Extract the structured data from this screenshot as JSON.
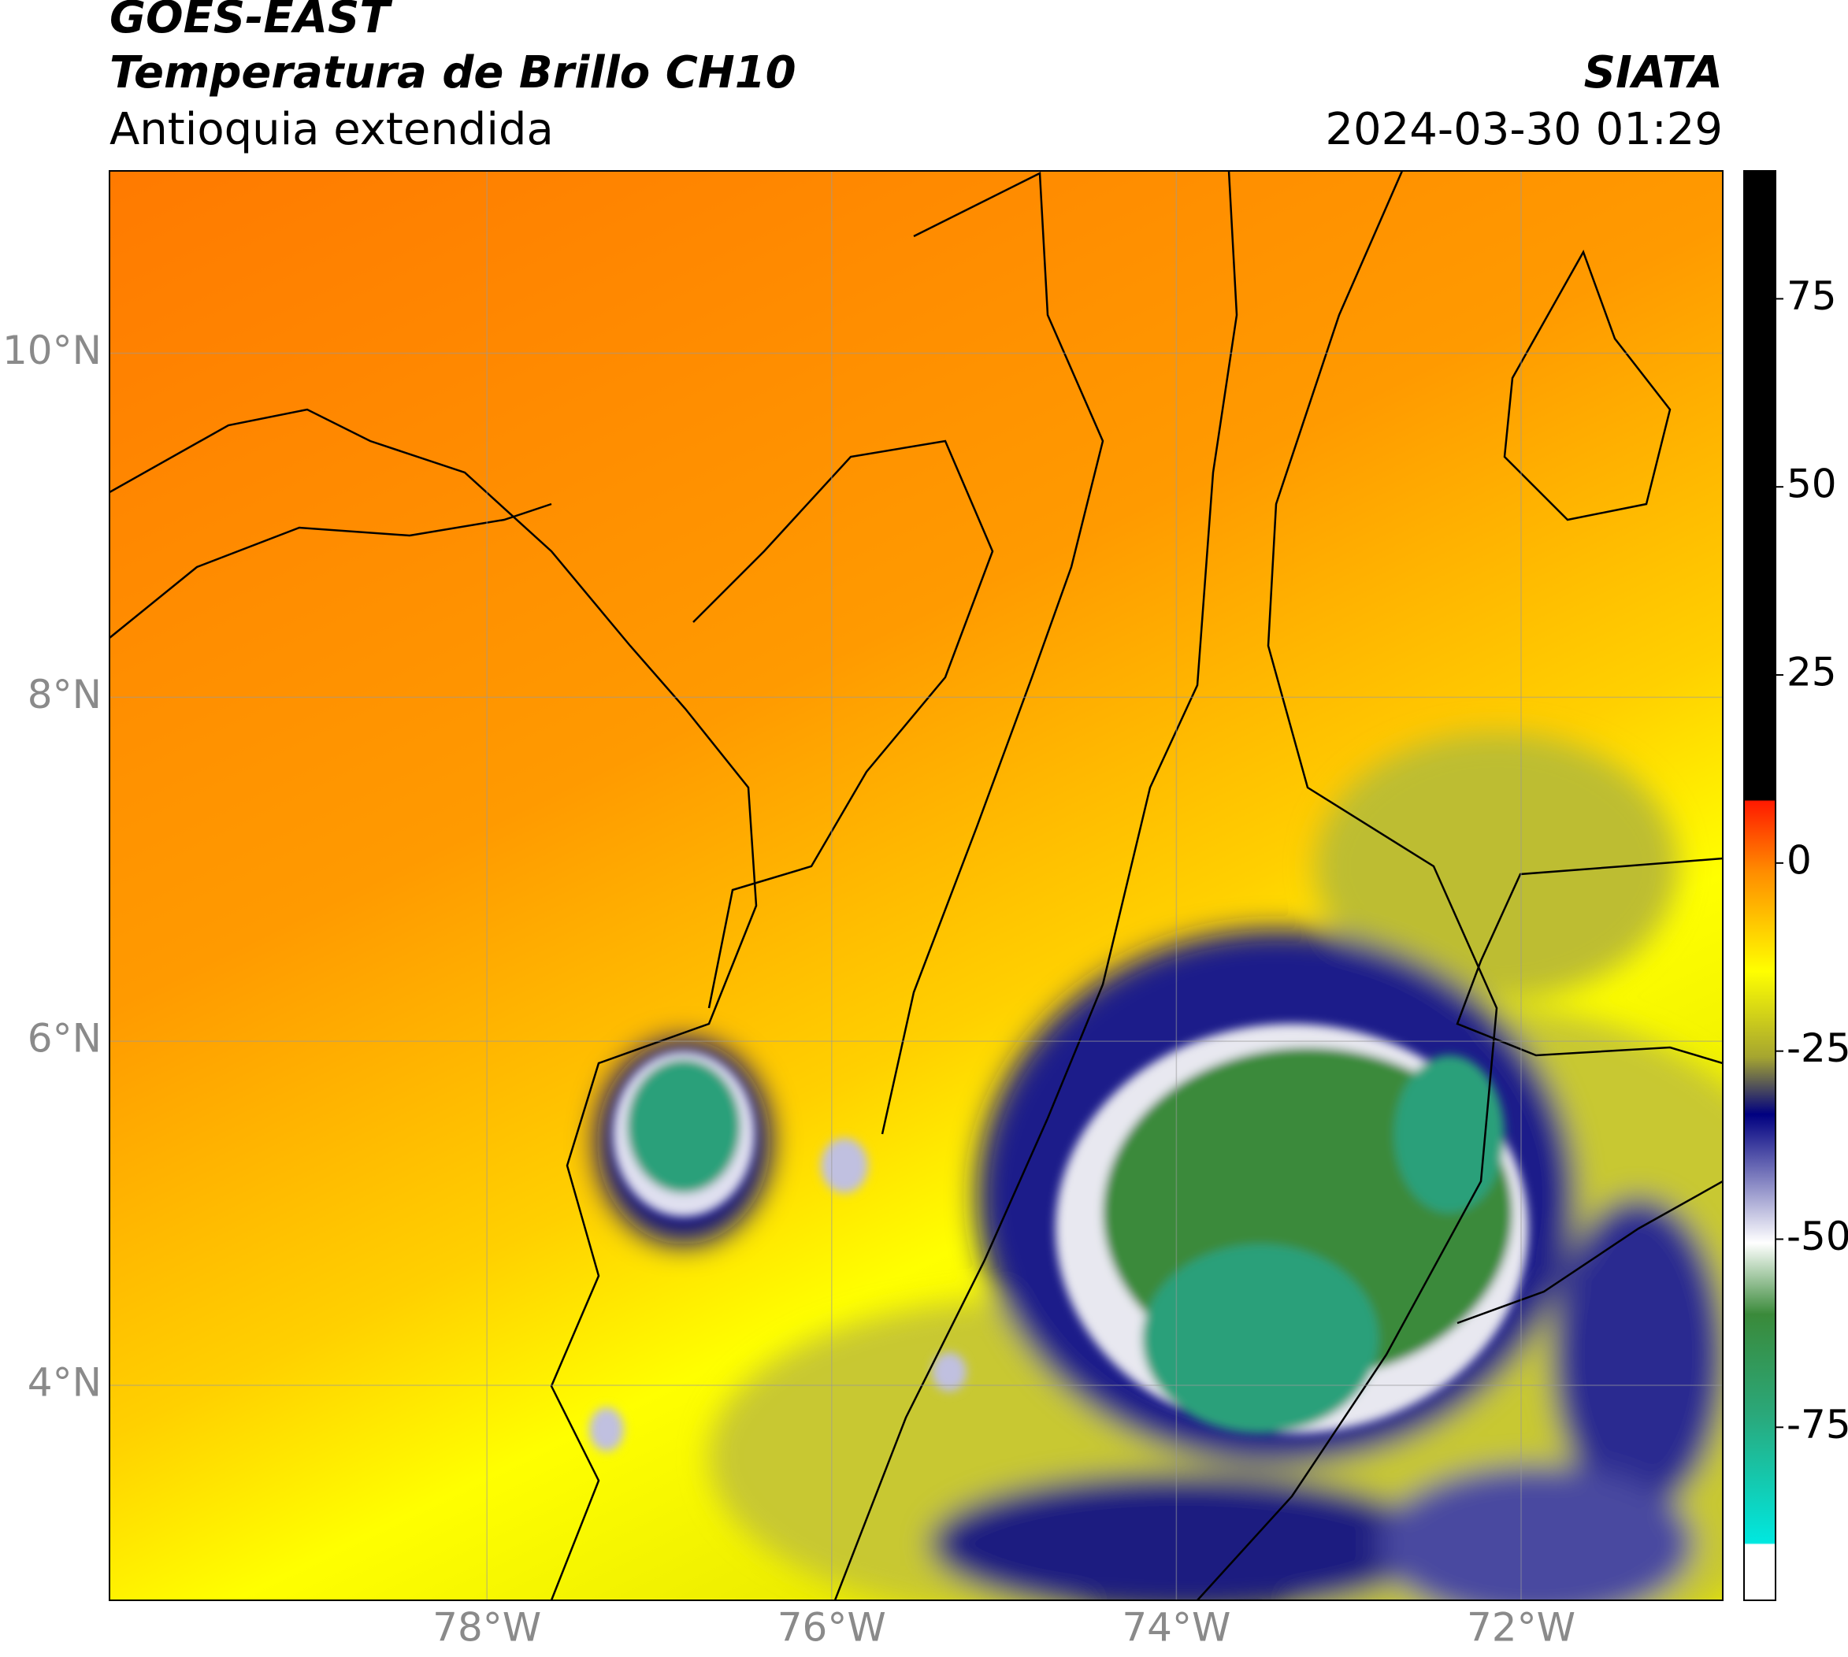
{
  "header": {
    "title": "GOES-EAST",
    "subtitle": "Temperatura de Brillo CH10",
    "region": "Antioquia extendida",
    "source": "SIATA",
    "datetime": "2024-03-30 01:29"
  },
  "map": {
    "xlim": [
      -80.19,
      -70.83
    ],
    "ylim": [
      2.75,
      11.06
    ],
    "xticks": [
      {
        "value": -78,
        "label": "78°W"
      },
      {
        "value": -76,
        "label": "76°W"
      },
      {
        "value": -74,
        "label": "74°W"
      },
      {
        "value": -72,
        "label": "72°W"
      }
    ],
    "yticks": [
      {
        "value": 10,
        "label": "10°N"
      },
      {
        "value": 8,
        "label": "8°N"
      },
      {
        "value": 6,
        "label": "6°N"
      },
      {
        "value": 4,
        "label": "4°N"
      }
    ],
    "grid": true
  },
  "colorbar": {
    "lim": [
      -98,
      92
    ],
    "ticks": [
      75,
      50,
      25,
      0,
      -25,
      -50,
      -75
    ]
  }
}
